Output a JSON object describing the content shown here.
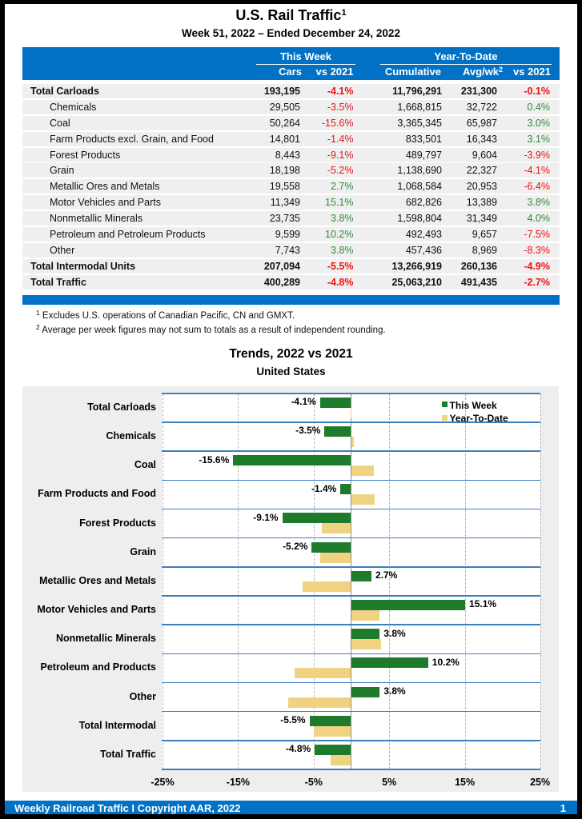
{
  "page": {
    "title": "U.S. Rail Traffic",
    "title_superscript": "1",
    "subtitle": "Week 51, 2022 – Ended December 24, 2022",
    "footer_text": "Weekly Railroad Traffic I Copyright AAR, 2022",
    "page_number": "1"
  },
  "colors": {
    "accent_blue": "#0071c5",
    "negative_red": "#ee1111",
    "positive_green": "#2e8b3c",
    "bar_green": "#1e7b2c",
    "bar_tan": "#f0d283",
    "chart_line_blue": "#3d7ebf",
    "row_gray": "#efefef",
    "chart_bg_gray": "#eeeeee"
  },
  "table": {
    "group_week": "This Week",
    "group_ytd": "Year-To-Date",
    "col_cars": "Cars",
    "col_wk_vs": "vs 2021",
    "col_cumulative": "Cumulative",
    "col_avgwk": "Avg/wk",
    "col_avgwk_superscript": "2",
    "col_ytd_vs": "vs 2021",
    "rows": [
      {
        "label": "Total Carloads",
        "bold": true,
        "indent": false,
        "cars": "193,195",
        "wk_vs": "-4.1%",
        "cumulative": "11,796,291",
        "avgwk": "231,300",
        "ytd_vs": "-0.1%"
      },
      {
        "label": "Chemicals",
        "bold": false,
        "indent": true,
        "cars": "29,505",
        "wk_vs": "-3.5%",
        "cumulative": "1,668,815",
        "avgwk": "32,722",
        "ytd_vs": "0.4%"
      },
      {
        "label": "Coal",
        "bold": false,
        "indent": true,
        "cars": "50,264",
        "wk_vs": "-15.6%",
        "cumulative": "3,365,345",
        "avgwk": "65,987",
        "ytd_vs": "3.0%"
      },
      {
        "label": "Farm Products excl. Grain, and Food",
        "bold": false,
        "indent": true,
        "cars": "14,801",
        "wk_vs": "-1.4%",
        "cumulative": "833,501",
        "avgwk": "16,343",
        "ytd_vs": "3.1%"
      },
      {
        "label": "Forest Products",
        "bold": false,
        "indent": true,
        "cars": "8,443",
        "wk_vs": "-9.1%",
        "cumulative": "489,797",
        "avgwk": "9,604",
        "ytd_vs": "-3.9%"
      },
      {
        "label": "Grain",
        "bold": false,
        "indent": true,
        "cars": "18,198",
        "wk_vs": "-5.2%",
        "cumulative": "1,138,690",
        "avgwk": "22,327",
        "ytd_vs": "-4.1%"
      },
      {
        "label": "Metallic Ores and Metals",
        "bold": false,
        "indent": true,
        "cars": "19,558",
        "wk_vs": "2.7%",
        "cumulative": "1,068,584",
        "avgwk": "20,953",
        "ytd_vs": "-6.4%"
      },
      {
        "label": "Motor Vehicles and Parts",
        "bold": false,
        "indent": true,
        "cars": "11,349",
        "wk_vs": "15.1%",
        "cumulative": "682,826",
        "avgwk": "13,389",
        "ytd_vs": "3.8%"
      },
      {
        "label": "Nonmetallic Minerals",
        "bold": false,
        "indent": true,
        "cars": "23,735",
        "wk_vs": "3.8%",
        "cumulative": "1,598,804",
        "avgwk": "31,349",
        "ytd_vs": "4.0%"
      },
      {
        "label": "Petroleum and Petroleum Products",
        "bold": false,
        "indent": true,
        "cars": "9,599",
        "wk_vs": "10.2%",
        "cumulative": "492,493",
        "avgwk": "9,657",
        "ytd_vs": "-7.5%"
      },
      {
        "label": "Other",
        "bold": false,
        "indent": true,
        "cars": "7,743",
        "wk_vs": "3.8%",
        "cumulative": "457,436",
        "avgwk": "8,969",
        "ytd_vs": "-8.3%"
      },
      {
        "label": "Total Intermodal Units",
        "bold": true,
        "indent": false,
        "cars": "207,094",
        "wk_vs": "-5.5%",
        "cumulative": "13,266,919",
        "avgwk": "260,136",
        "ytd_vs": "-4.9%"
      },
      {
        "label": "Total Traffic",
        "bold": true,
        "indent": false,
        "cars": "400,289",
        "wk_vs": "-4.8%",
        "cumulative": "25,063,210",
        "avgwk": "491,435",
        "ytd_vs": "-2.7%"
      }
    ]
  },
  "footnotes": [
    {
      "sup": "1",
      "text": "Excludes U.S. operations of Canadian Pacific, CN and GMXT."
    },
    {
      "sup": "2",
      "text": "Average per week figures may not sum to totals as a result of independent rounding."
    }
  ],
  "chart_data": {
    "type": "bar",
    "orientation": "horizontal",
    "title": "Trends, 2022 vs 2021",
    "subtitle": "United States",
    "categories": [
      "Total Carloads",
      "Chemicals",
      "Coal",
      "Farm Products and Food",
      "Forest Products",
      "Grain",
      "Metallic Ores and Metals",
      "Motor Vehicles and Parts",
      "Nonmetallic Minerals",
      "Petroleum and Products",
      "Other",
      "Total Intermodal",
      "Total Traffic"
    ],
    "series": [
      {
        "name": "This Week",
        "color": "#1e7b2c",
        "values": [
          -4.1,
          -3.5,
          -15.6,
          -1.4,
          -9.1,
          -5.2,
          2.7,
          15.1,
          3.8,
          10.2,
          3.8,
          -5.5,
          -4.8
        ]
      },
      {
        "name": "Year-To-Date",
        "color": "#f0d283",
        "values": [
          -0.1,
          0.4,
          3.0,
          3.1,
          -3.9,
          -4.1,
          -6.4,
          3.8,
          4.0,
          -7.5,
          -8.3,
          -4.9,
          -2.7
        ]
      }
    ],
    "xlim": [
      -25,
      25
    ],
    "x_tick_labels": [
      "-25%",
      "-15%",
      "-5%",
      "5%",
      "15%",
      "25%"
    ],
    "x_tick_values": [
      -25,
      -15,
      -5,
      5,
      15,
      25
    ],
    "legend_position": "top-right",
    "grid": "vertical-dashed",
    "bar_labels_series": "This Week"
  }
}
